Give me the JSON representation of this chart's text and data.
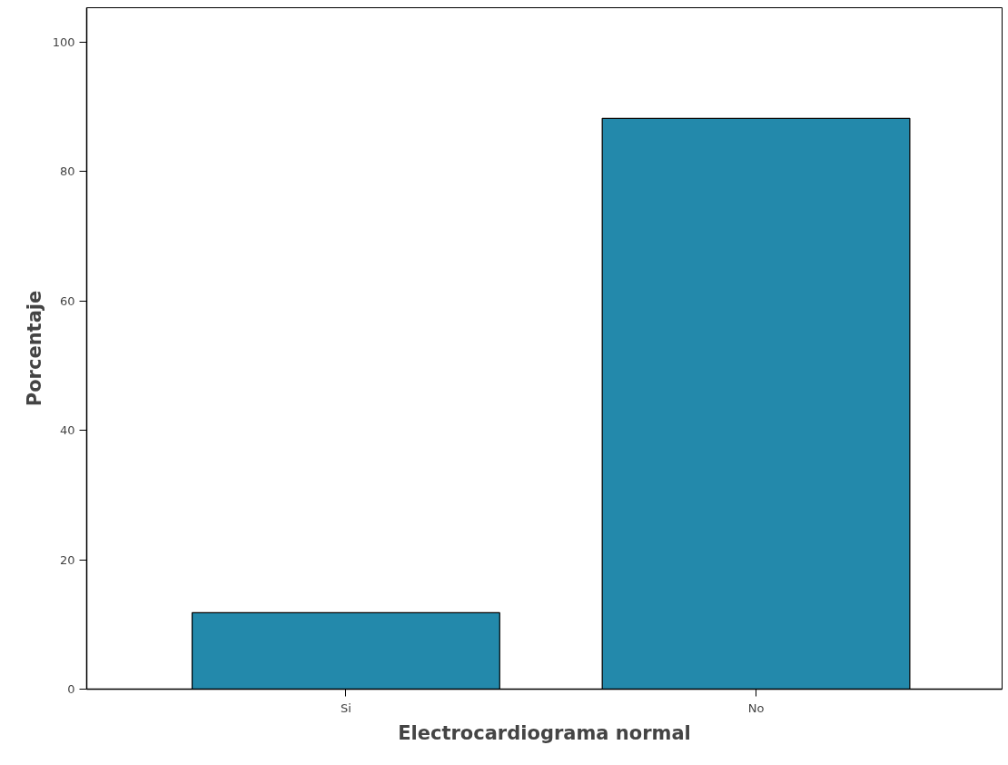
{
  "chart_data": {
    "type": "bar",
    "xlabel": "Electrocardiograma normal",
    "ylabel": "Porcentaje",
    "categories": [
      "Si",
      "No"
    ],
    "values": [
      11.8,
      88.2
    ],
    "color": "#2389ab",
    "ylim": [
      0,
      105.3
    ],
    "yticks": [
      0,
      20,
      40,
      60,
      80,
      100
    ],
    "grid": false
  }
}
